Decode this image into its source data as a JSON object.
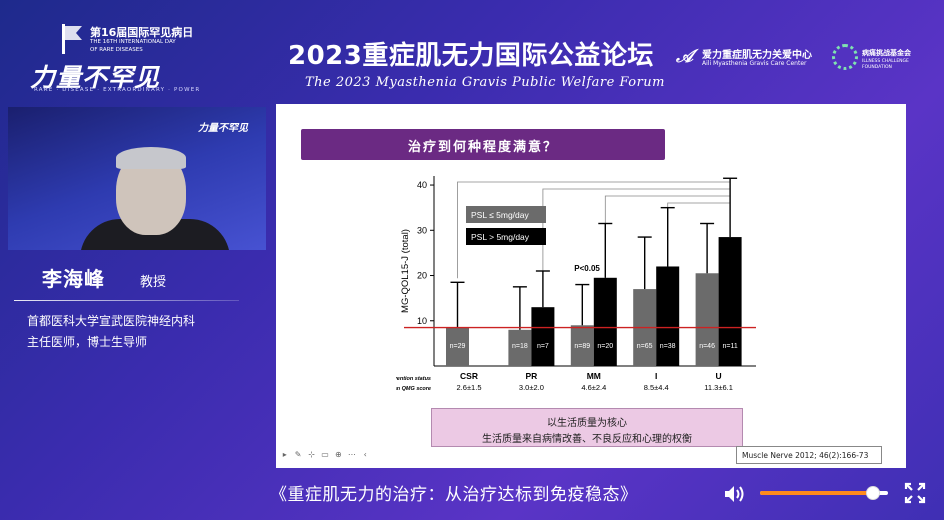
{
  "header": {
    "event_cn": "第16届国际罕见病日",
    "event_en_1": "THE 16TH INTERNATIONAL DAY",
    "event_en_2": "OF RARE DISEASES",
    "event_en_3": "",
    "brand_logo": "力量不罕见",
    "brand_tagline": "RARE · DISEASE · EXTRAORDINARY · POWER",
    "forum_title": "2023重症肌无力国际公益论坛",
    "forum_subtitle": "The 2023 Myasthenia Gravis Public Welfare Forum",
    "partner1_cn": "爱力重症肌无力关爱中心",
    "partner1_en": "Aili Myasthenia Gravis Care Center",
    "partner2_cn": "病痛挑战基金会",
    "partner2_en_1": "ILLNESS CHALLENGE",
    "partner2_en_2": "FOUNDATION"
  },
  "speaker": {
    "video_logo": "力量不罕见",
    "name": "李海峰",
    "title": "教授",
    "affiliation_1": "首都医科大学宣武医院神经内科",
    "affiliation_2": "主任医师，博士生导师"
  },
  "slide": {
    "title": "治疗到何种程度满意？",
    "summary_1": "以生活质量为核心",
    "summary_2": "生活质量来自病情改善、不良反应和心理的权衡",
    "citation": "Muscle Nerve 2012; 46(2):166-73"
  },
  "chart_data": {
    "type": "bar",
    "ylabel": "MG-QOL15-J (total)",
    "ylim": [
      0,
      42
    ],
    "yticks": [
      10,
      20,
      30,
      40
    ],
    "threshold": 8.5,
    "threshold_color": "#cc2222",
    "legend": [
      "PSL ≤ 5mg/day",
      "PSL > 5mg/day"
    ],
    "legend_colors": [
      "#6b6b6b",
      "#000000"
    ],
    "significance_label": "P<0.05",
    "row_labels": [
      "Postintervention status",
      "Mean QMG score"
    ],
    "categories": [
      "CSR",
      "PR",
      "MM",
      "I",
      "U"
    ],
    "qmg": [
      "2.6±1.5",
      "3.0±2.0",
      "4.6±2.4",
      "8.5±4.4",
      "11.3±6.1"
    ],
    "series": [
      {
        "name": "PSL ≤ 5mg/day",
        "values": [
          8.5,
          8,
          9,
          17,
          20.5
        ],
        "errors": [
          10,
          9.5,
          9,
          11.5,
          11
        ],
        "n": [
          "n=29",
          "n=18",
          "n=89",
          "n=65",
          "n=46"
        ]
      },
      {
        "name": "PSL > 5mg/day",
        "values": [
          null,
          13,
          19.5,
          22,
          28.5
        ],
        "errors": [
          null,
          8,
          12,
          13,
          13
        ],
        "n": [
          "",
          "n=7",
          "n=20",
          "n=38",
          "n=11"
        ]
      }
    ]
  },
  "player": {
    "subtitle": "《重症肌无力的治疗：从治疗达标到免疫稳态》",
    "volume": 0.88,
    "accent": "#ff8a1c"
  }
}
